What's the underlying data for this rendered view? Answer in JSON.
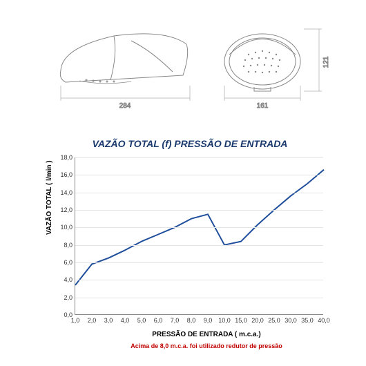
{
  "diagrams": {
    "side_width_label": "284",
    "front_width_label": "161",
    "height_label": "121",
    "stroke_color": "#888888"
  },
  "chart": {
    "type": "line",
    "title": "VAZÃO TOTAL (f) PRESSÃO DE ENTRADA",
    "xlabel": "PRESSÃO DE ENTRADA ( m.c.a.)",
    "ylabel": "VAZÃO TOTAL ( l/min )",
    "footnote": "Acima de 8,0 m.c.a. foi utilizado redutor de pressão",
    "title_fontsize": 14,
    "label_fontsize": 10,
    "tick_fontsize": 9,
    "x_values": [
      1.0,
      2.0,
      3.0,
      4.0,
      5.0,
      6.0,
      7.0,
      8.0,
      9.0,
      10.0,
      15.0,
      20.0,
      25.0,
      30.0,
      35.0,
      40.0
    ],
    "y_values": [
      3.4,
      5.8,
      6.5,
      7.4,
      8.4,
      9.2,
      10.0,
      11.0,
      11.5,
      8.0,
      8.4,
      10.3,
      12.0,
      13.6,
      15.0,
      16.6
    ],
    "x_ticks": [
      "1,0",
      "2,0",
      "3,0",
      "4,0",
      "5,0",
      "6,0",
      "7,0",
      "8,0",
      "9,0",
      "10,0",
      "15,0",
      "20,0",
      "25,0",
      "30,0",
      "35,0",
      "40,0"
    ],
    "y_ticks": [
      "0,0",
      "2,0",
      "4,0",
      "6,0",
      "8,0",
      "10,0",
      "12,0",
      "14,0",
      "16,0",
      "18,0"
    ],
    "ylim": [
      0,
      18
    ],
    "line_color": "#1f4e9c",
    "line_width": 2,
    "grid_color": "#e5e5e5",
    "axis_color": "#888888",
    "background_color": "#ffffff",
    "footnote_color": "#c00000",
    "title_color": "#1a3a6e"
  }
}
